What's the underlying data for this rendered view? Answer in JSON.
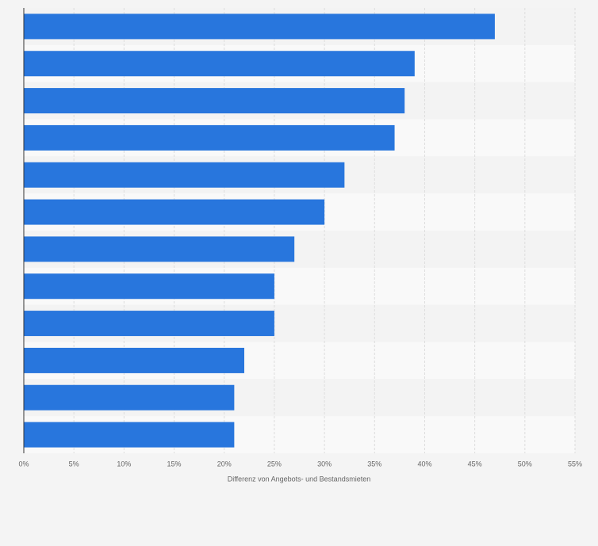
{
  "chart_data": {
    "type": "bar",
    "orientation": "horizontal",
    "x_label": "Differenz von Angebots- und Bestandsmieten",
    "categories": [
      null,
      null,
      null,
      null,
      null,
      null,
      null,
      null,
      null,
      null,
      null,
      null
    ],
    "values": [
      47,
      39,
      38,
      37,
      32,
      30,
      27,
      25,
      25,
      22,
      21,
      21
    ],
    "color": "#2876dd",
    "xlim": [
      0,
      55
    ],
    "xticks": [
      {
        "value": 0,
        "label": "0%"
      },
      {
        "value": 5,
        "label": "5%"
      },
      {
        "value": 10,
        "label": "10%"
      },
      {
        "value": 15,
        "label": "15%"
      },
      {
        "value": 20,
        "label": "20%"
      },
      {
        "value": 25,
        "label": "25%"
      },
      {
        "value": 30,
        "label": "30%"
      },
      {
        "value": 35,
        "label": "35%"
      },
      {
        "value": 40,
        "label": "40%"
      },
      {
        "value": 45,
        "label": "45%"
      },
      {
        "value": 50,
        "label": "50%"
      },
      {
        "value": 55,
        "label": "55%"
      }
    ],
    "grid": true
  }
}
